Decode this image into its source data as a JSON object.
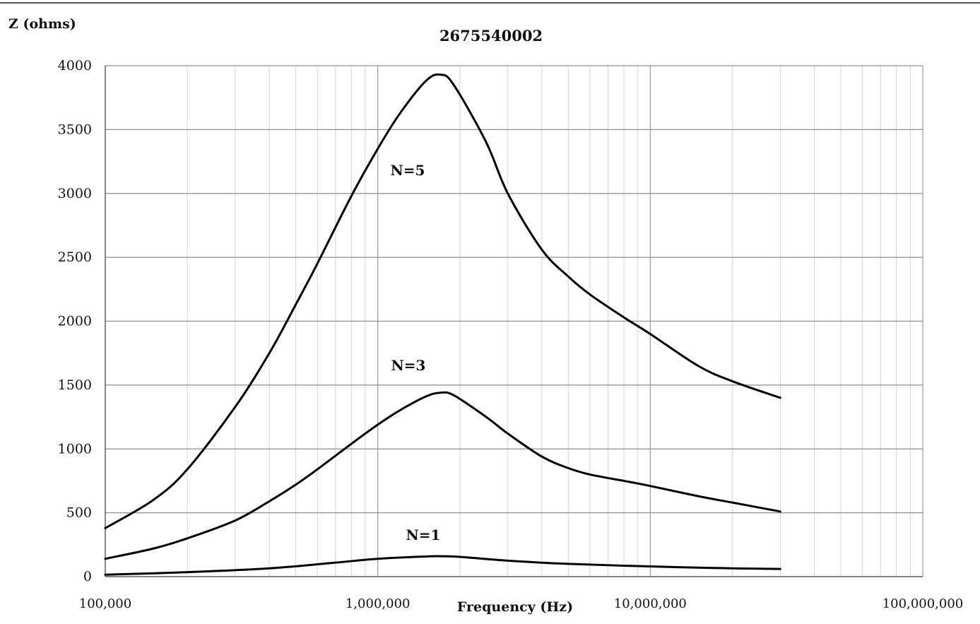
{
  "chart_data": {
    "type": "line",
    "title": "2675540002",
    "xlabel": "Frequency (Hz)",
    "ylabel": "Z (ohms)",
    "x_scale": "log",
    "xlim": [
      100000,
      100000000
    ],
    "ylim": [
      0,
      4000
    ],
    "grid": true,
    "x_ticks": [
      {
        "value": 100000,
        "label": "100,000"
      },
      {
        "value": 1000000,
        "label": "1,000,000"
      },
      {
        "value": 10000000,
        "label": "10,000,000"
      },
      {
        "value": 100000000,
        "label": "100,000,000"
      }
    ],
    "y_ticks": [
      {
        "value": 0,
        "label": "0"
      },
      {
        "value": 500,
        "label": "500"
      },
      {
        "value": 1000,
        "label": "1000"
      },
      {
        "value": 1500,
        "label": "1500"
      },
      {
        "value": 2000,
        "label": "2000"
      },
      {
        "value": 2500,
        "label": "2500"
      },
      {
        "value": 3000,
        "label": "3000"
      },
      {
        "value": 3500,
        "label": "3500"
      },
      {
        "value": 4000,
        "label": "4000"
      }
    ],
    "series": [
      {
        "name": "N=5",
        "x": [
          100000,
          150000,
          200000,
          300000,
          400000,
          500000,
          600000,
          800000,
          1000000,
          1200000,
          1500000,
          1700000,
          1900000,
          2500000,
          3000000,
          4000000,
          5000000,
          6000000,
          8000000,
          10000000,
          15000000,
          20000000,
          30000000
        ],
        "y": [
          380,
          600,
          840,
          1330,
          1750,
          2130,
          2450,
          2980,
          3350,
          3620,
          3880,
          3930,
          3850,
          3400,
          3000,
          2560,
          2350,
          2210,
          2030,
          1900,
          1650,
          1530,
          1400
        ]
      },
      {
        "name": "N=3",
        "x": [
          100000,
          150000,
          200000,
          300000,
          400000,
          500000,
          600000,
          800000,
          1000000,
          1200000,
          1500000,
          1700000,
          1900000,
          2500000,
          3000000,
          4000000,
          5000000,
          6000000,
          8000000,
          10000000,
          15000000,
          20000000,
          30000000
        ],
        "y": [
          140,
          220,
          300,
          440,
          590,
          720,
          840,
          1040,
          1190,
          1300,
          1410,
          1440,
          1420,
          1250,
          1120,
          940,
          850,
          800,
          750,
          710,
          630,
          580,
          510
        ]
      },
      {
        "name": "N=1",
        "x": [
          100000,
          200000,
          400000,
          700000,
          1000000,
          1500000,
          1700000,
          2000000,
          3000000,
          5000000,
          10000000,
          20000000,
          30000000
        ],
        "y": [
          15,
          35,
          65,
          110,
          140,
          158,
          160,
          155,
          125,
          100,
          80,
          65,
          60
        ]
      }
    ]
  }
}
